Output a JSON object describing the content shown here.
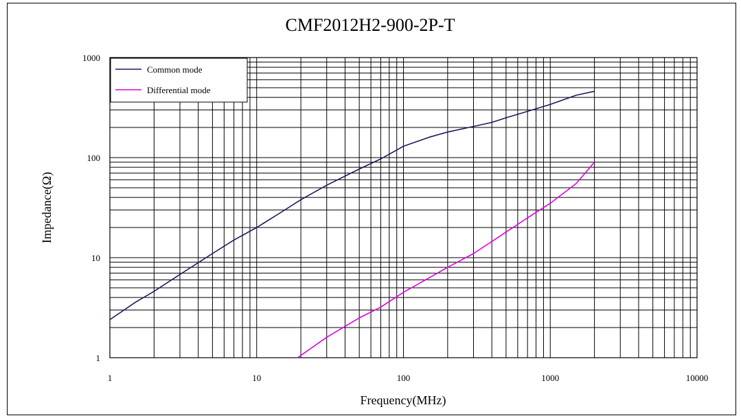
{
  "chart_data": {
    "type": "line",
    "title": "CMF2012H2-900-2P-T",
    "xlabel": "Frequency(MHz)",
    "ylabel": "Impedance(Ω)",
    "x_scale": "log",
    "y_scale": "log",
    "xlim": [
      1,
      10000
    ],
    "ylim": [
      1,
      1000
    ],
    "x_ticks": [
      "1",
      "10",
      "100",
      "1000",
      "10000"
    ],
    "y_ticks": [
      "1",
      "10",
      "100",
      "1000"
    ],
    "grid": true,
    "legend_position": "top-left",
    "series": [
      {
        "name": "Common mode",
        "color": "#1a1a5e",
        "points": [
          [
            1,
            2.4
          ],
          [
            1.5,
            3.6
          ],
          [
            2,
            4.6
          ],
          [
            3,
            6.8
          ],
          [
            5,
            11
          ],
          [
            7,
            15
          ],
          [
            10,
            20
          ],
          [
            15,
            29
          ],
          [
            20,
            38
          ],
          [
            30,
            53
          ],
          [
            50,
            77
          ],
          [
            70,
            97
          ],
          [
            100,
            130
          ],
          [
            150,
            160
          ],
          [
            200,
            180
          ],
          [
            300,
            205
          ],
          [
            400,
            225
          ],
          [
            500,
            250
          ],
          [
            700,
            290
          ],
          [
            1000,
            340
          ],
          [
            1500,
            420
          ],
          [
            2000,
            460
          ]
        ]
      },
      {
        "name": "Differential mode",
        "color": "#e000e0",
        "points": [
          [
            19,
            1.0
          ],
          [
            30,
            1.6
          ],
          [
            50,
            2.5
          ],
          [
            70,
            3.2
          ],
          [
            100,
            4.5
          ],
          [
            150,
            6.3
          ],
          [
            200,
            8.0
          ],
          [
            300,
            11
          ],
          [
            500,
            18
          ],
          [
            700,
            25
          ],
          [
            1000,
            35
          ],
          [
            1500,
            55
          ],
          [
            2000,
            90
          ]
        ]
      }
    ]
  }
}
